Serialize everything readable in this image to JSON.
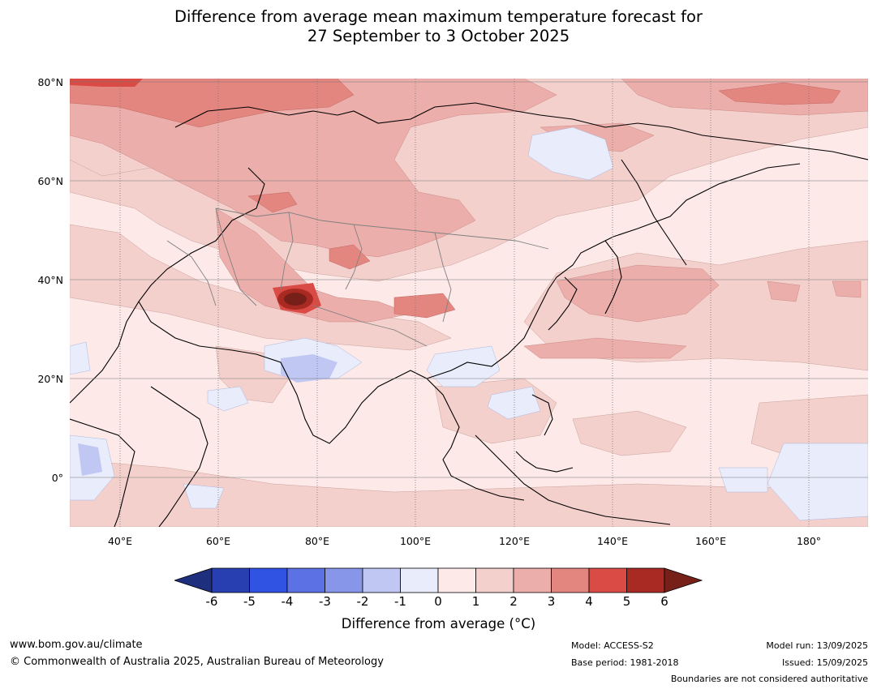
{
  "title": {
    "line1": "Difference from average mean maximum temperature forecast for",
    "line2": "27 September to 3 October 2025"
  },
  "map": {
    "lat_labels": [
      "80°N",
      "60°N",
      "40°N",
      "20°N",
      "0°"
    ],
    "lon_labels": [
      "40°E",
      "60°E",
      "80°E",
      "100°E",
      "120°E",
      "140°E",
      "160°E",
      "180°"
    ],
    "palette": {
      "minus6": "#1e2f7d",
      "minus5": "#283fb1",
      "minus4": "#3053e3",
      "minus3": "#5c72e4",
      "minus2": "#8896e9",
      "minus1": "#c0c7f3",
      "zero_minus": "#e8ecfb",
      "zero_plus": "#fce9e8",
      "plus1": "#f4d0cd",
      "plus2": "#ecaeaa",
      "plus3": "#e48680",
      "plus4": "#d94b44",
      "plus5": "#a82a22",
      "plus6": "#772019"
    }
  },
  "colorbar": {
    "ticks": [
      "-6",
      "-5",
      "-4",
      "-3",
      "-2",
      "-1",
      "0",
      "1",
      "2",
      "3",
      "4",
      "5",
      "6"
    ],
    "label": "Difference from average (°C)"
  },
  "footer": {
    "website": "www.bom.gov.au/climate",
    "copyright": "© Commonwealth of Australia 2025, Australian Bureau of Meteorology",
    "model": "Model: ACCESS-S2",
    "base_period": "Base period: 1981-2018",
    "model_run": "Model run: 13/09/2025",
    "issued": "Issued: 15/09/2025",
    "disclaimer": "Boundaries are not considered authoritative"
  }
}
